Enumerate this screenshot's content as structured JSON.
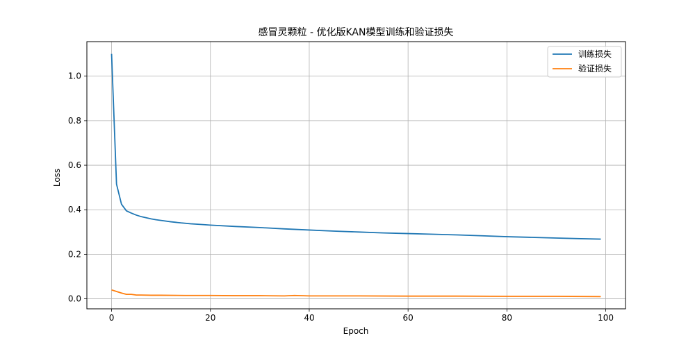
{
  "chart_data": {
    "type": "line",
    "title": "感冒灵颗粒 - 优化版KAN模型训练和验证损失",
    "xlabel": "Epoch",
    "ylabel": "Loss",
    "xlim": [
      -5,
      104
    ],
    "ylim": [
      -0.045,
      1.155
    ],
    "xticks": [
      0,
      20,
      40,
      60,
      80,
      100
    ],
    "yticks": [
      0.0,
      0.2,
      0.4,
      0.6,
      0.8,
      1.0
    ],
    "grid": true,
    "legend_position": "top-right",
    "series": [
      {
        "name": "训练损失",
        "color": "#1f77b4",
        "points": [
          [
            0,
            1.1
          ],
          [
            1,
            0.515
          ],
          [
            2,
            0.425
          ],
          [
            3,
            0.395
          ],
          [
            4,
            0.385
          ],
          [
            5,
            0.376
          ],
          [
            6,
            0.369
          ],
          [
            7,
            0.364
          ],
          [
            8,
            0.359
          ],
          [
            9,
            0.355
          ],
          [
            10,
            0.352
          ],
          [
            12,
            0.346
          ],
          [
            14,
            0.341
          ],
          [
            16,
            0.337
          ],
          [
            18,
            0.334
          ],
          [
            20,
            0.331
          ],
          [
            25,
            0.325
          ],
          [
            30,
            0.32
          ],
          [
            35,
            0.314
          ],
          [
            40,
            0.309
          ],
          [
            45,
            0.304
          ],
          [
            50,
            0.3
          ],
          [
            55,
            0.296
          ],
          [
            60,
            0.293
          ],
          [
            65,
            0.29
          ],
          [
            70,
            0.287
          ],
          [
            75,
            0.283
          ],
          [
            80,
            0.279
          ],
          [
            85,
            0.276
          ],
          [
            90,
            0.273
          ],
          [
            95,
            0.27
          ],
          [
            99,
            0.268
          ]
        ]
      },
      {
        "name": "验证损失",
        "color": "#ff7f0e",
        "points": [
          [
            0,
            0.04
          ],
          [
            1,
            0.033
          ],
          [
            2,
            0.026
          ],
          [
            3,
            0.02
          ],
          [
            4,
            0.02
          ],
          [
            5,
            0.017
          ],
          [
            6,
            0.017
          ],
          [
            8,
            0.016
          ],
          [
            10,
            0.016
          ],
          [
            15,
            0.015
          ],
          [
            20,
            0.015
          ],
          [
            25,
            0.014
          ],
          [
            30,
            0.014
          ],
          [
            35,
            0.013
          ],
          [
            37,
            0.015
          ],
          [
            40,
            0.013
          ],
          [
            50,
            0.013
          ],
          [
            60,
            0.012
          ],
          [
            70,
            0.012
          ],
          [
            80,
            0.011
          ],
          [
            90,
            0.011
          ],
          [
            99,
            0.01
          ]
        ]
      }
    ]
  }
}
